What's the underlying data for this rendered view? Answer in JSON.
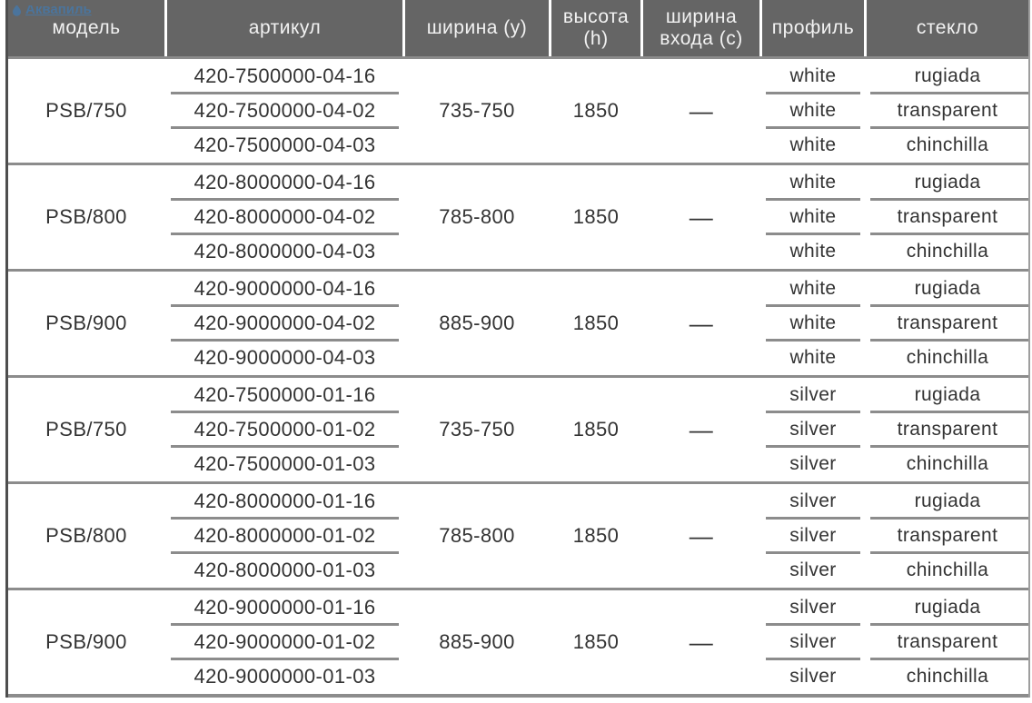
{
  "logo": {
    "text": "Аквапиль",
    "icon": "water-drop-icon",
    "color": "#4579ab"
  },
  "colors": {
    "header_bg": "#656565",
    "header_text": "#f2f2f2",
    "separator": "#8c8c8c",
    "left_border": "#4e4e4e",
    "body_text": "#333333",
    "logo_blue": "#4579ab"
  },
  "table": {
    "columns": [
      {
        "key": "model",
        "label": "модель"
      },
      {
        "key": "article",
        "label": "артикул"
      },
      {
        "key": "width",
        "label": "ширина (у)"
      },
      {
        "key": "height",
        "label": "высота (h)"
      },
      {
        "key": "entry",
        "label": "ширина входа (с)"
      },
      {
        "key": "profile",
        "label": "профиль"
      },
      {
        "key": "glass",
        "label": "стекло"
      }
    ],
    "groups": [
      {
        "model": "PSB/750",
        "articles": [
          "420-7500000-04-16",
          "420-7500000-04-02",
          "420-7500000-04-03"
        ],
        "width": "735-750",
        "height": "1850",
        "entry": "—",
        "profiles": [
          "white",
          "white",
          "white"
        ],
        "glasses": [
          "rugiada",
          "transparent",
          "chinchilla"
        ]
      },
      {
        "model": "PSB/800",
        "articles": [
          "420-8000000-04-16",
          "420-8000000-04-02",
          "420-8000000-04-03"
        ],
        "width": "785-800",
        "height": "1850",
        "entry": "—",
        "profiles": [
          "white",
          "white",
          "white"
        ],
        "glasses": [
          "rugiada",
          "transparent",
          "chinchilla"
        ]
      },
      {
        "model": "PSB/900",
        "articles": [
          "420-9000000-04-16",
          "420-9000000-04-02",
          "420-9000000-04-03"
        ],
        "width": "885-900",
        "height": "1850",
        "entry": "—",
        "profiles": [
          "white",
          "white",
          "white"
        ],
        "glasses": [
          "rugiada",
          "transparent",
          "chinchilla"
        ]
      },
      {
        "model": "PSB/750",
        "articles": [
          "420-7500000-01-16",
          "420-7500000-01-02",
          "420-7500000-01-03"
        ],
        "width": "735-750",
        "height": "1850",
        "entry": "—",
        "profiles": [
          "silver",
          "silver",
          "silver"
        ],
        "glasses": [
          "rugiada",
          "transparent",
          "chinchilla"
        ]
      },
      {
        "model": "PSB/800",
        "articles": [
          "420-8000000-01-16",
          "420-8000000-01-02",
          "420-8000000-01-03"
        ],
        "width": "785-800",
        "height": "1850",
        "entry": "—",
        "profiles": [
          "silver",
          "silver",
          "silver"
        ],
        "glasses": [
          "rugiada",
          "transparent",
          "chinchilla"
        ]
      },
      {
        "model": "PSB/900",
        "articles": [
          "420-9000000-01-16",
          "420-9000000-01-02",
          "420-9000000-01-03"
        ],
        "width": "885-900",
        "height": "1850",
        "entry": "—",
        "profiles": [
          "silver",
          "silver",
          "silver"
        ],
        "glasses": [
          "rugiada",
          "transparent",
          "chinchilla"
        ]
      }
    ]
  }
}
